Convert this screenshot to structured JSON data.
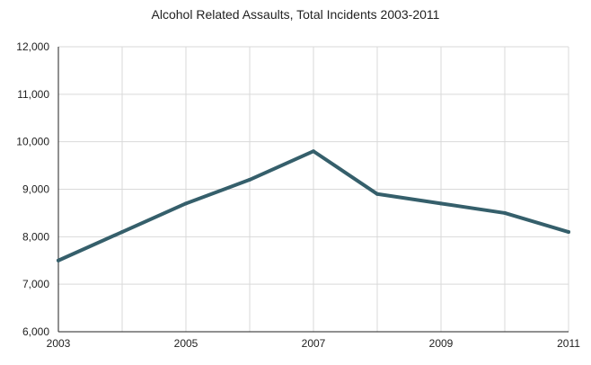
{
  "chart_data": {
    "type": "line",
    "title": "Alcohol Related Assaults, Total Incidents 2003-2011",
    "xlabel": "",
    "ylabel": "",
    "x": [
      2003,
      2004,
      2005,
      2006,
      2007,
      2008,
      2009,
      2010,
      2011
    ],
    "x_tick_labels": [
      "2003",
      "2005",
      "2007",
      "2009",
      "2011"
    ],
    "y_tick_labels": [
      "12,000",
      "11,000",
      "10,000",
      "9,000",
      "8,000",
      "7,000",
      "6,000"
    ],
    "ylim": [
      6000,
      12000
    ],
    "xlim": [
      2003,
      2011
    ],
    "grid": true,
    "series": [
      {
        "values": [
          7500,
          8100,
          8700,
          9200,
          9800,
          8900,
          8700,
          8500,
          8100
        ]
      }
    ],
    "colors": {
      "line": "#355f6b",
      "grid": "#d9d9d9",
      "axis": "#222222"
    }
  }
}
